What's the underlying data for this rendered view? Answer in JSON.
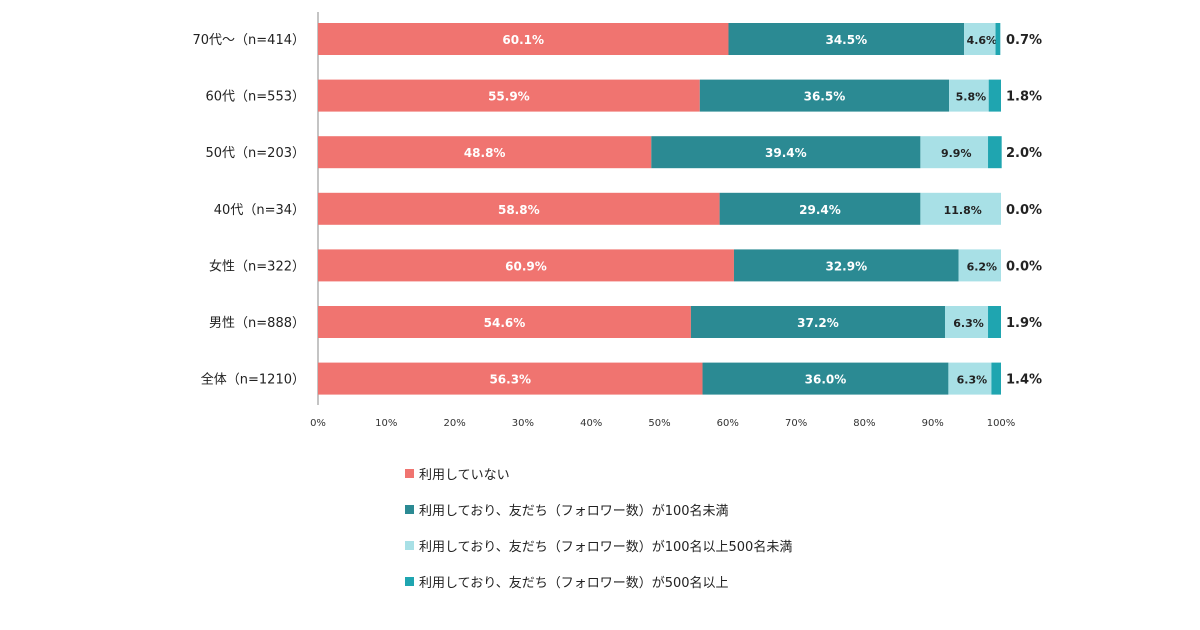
{
  "chart_data": {
    "type": "bar",
    "orientation": "horizontal",
    "stacked": true,
    "categories": [
      "70代～（n=414）",
      "60代（n=553）",
      "50代（n=203）",
      "40代（n=34）",
      "女性（n=322）",
      "男性（n=888）",
      "全体（n=1210）"
    ],
    "series": [
      {
        "name": "利用していない",
        "color": "#f07470",
        "values": [
          60.1,
          55.9,
          48.8,
          58.8,
          60.9,
          54.6,
          56.3
        ]
      },
      {
        "name": "利用しており、友だち（フォロワー数）が100名未満",
        "color": "#2b8a93",
        "values": [
          34.5,
          36.5,
          39.4,
          29.4,
          32.9,
          37.2,
          36.0
        ]
      },
      {
        "name": "利用しており、友だち（フォロワー数）が100名以上500名未満",
        "color": "#a8e0e6",
        "values": [
          4.6,
          5.8,
          9.9,
          11.8,
          6.2,
          6.3,
          6.3
        ]
      },
      {
        "name": "利用しており、友だち（フォロワー数）が500名以上",
        "color": "#1fa5b0",
        "values": [
          0.7,
          1.8,
          2.0,
          0.0,
          0.0,
          1.9,
          1.4
        ]
      }
    ],
    "data_labels": [
      [
        "60.1%",
        "34.5%",
        "4.6%",
        "0.7%"
      ],
      [
        "55.9%",
        "36.5%",
        "5.8%",
        "1.8%"
      ],
      [
        "48.8%",
        "39.4%",
        "9.9%",
        "2.0%"
      ],
      [
        "58.8%",
        "29.4%",
        "11.8%",
        "0.0%"
      ],
      [
        "60.9%",
        "32.9%",
        "6.2%",
        "0.0%"
      ],
      [
        "54.6%",
        "37.2%",
        "6.3%",
        "1.9%"
      ],
      [
        "56.3%",
        "36.0%",
        "6.3%",
        "1.4%"
      ]
    ],
    "x_ticks": [
      "0%",
      "10%",
      "20%",
      "30%",
      "40%",
      "50%",
      "60%",
      "70%",
      "80%",
      "90%",
      "100%"
    ],
    "xlim": [
      0,
      100
    ],
    "title": "",
    "xlabel": "",
    "ylabel": "",
    "grid": false,
    "legend_position": "bottom"
  }
}
